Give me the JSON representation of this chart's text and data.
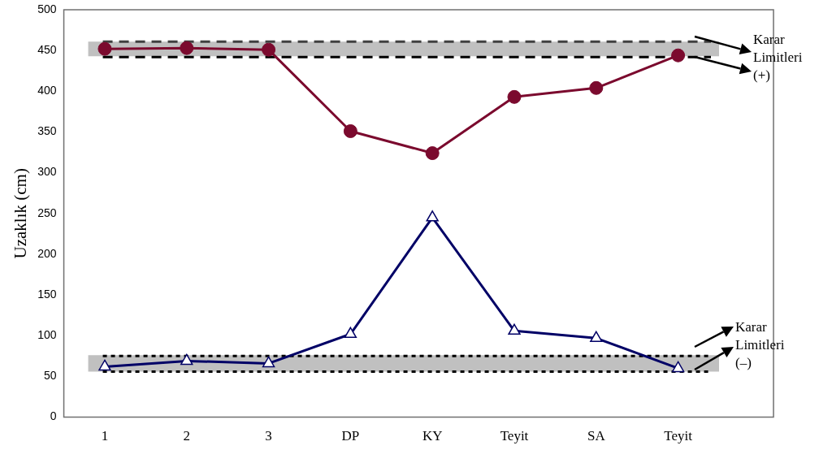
{
  "chart_data": {
    "type": "line",
    "ylabel": "Uzaklık (cm)",
    "categories": [
      "1",
      "2",
      "3",
      "DP",
      "KY",
      "Teyit",
      "SA",
      "Teyit"
    ],
    "series": [
      {
        "color": "#7b0a2e",
        "marker": "circle",
        "values": [
          452,
          453,
          451,
          351,
          324,
          393,
          404,
          444
        ]
      },
      {
        "color": "#000066",
        "marker": "triangle",
        "values": [
          62,
          69,
          66,
          102,
          245,
          106,
          97,
          60
        ]
      }
    ],
    "ylim": [
      0,
      500
    ],
    "yticks": [
      0,
      50,
      100,
      150,
      200,
      250,
      300,
      350,
      400,
      450,
      500
    ],
    "grid": false,
    "legend": false,
    "bands": [
      {
        "axis": "y",
        "from": 443,
        "to": 461,
        "color": "#c0c0c0"
      },
      {
        "axis": "y",
        "from": 56,
        "to": 76,
        "color": "#c0c0c0"
      }
    ],
    "ref_lines": [
      {
        "axis": "y",
        "value": 461,
        "color": "#404040",
        "line_style": "dashed"
      },
      {
        "axis": "y",
        "value": 442,
        "color": "#000000",
        "line_style": "dashed"
      },
      {
        "axis": "y",
        "value": 75,
        "color": "#000000",
        "line_style": "dotted"
      },
      {
        "axis": "y",
        "value": 56,
        "color": "#000000",
        "line_style": "dotted"
      }
    ],
    "annotations": [
      "Karar Limitleri (+)",
      "Karar Limitleri (–)"
    ]
  }
}
